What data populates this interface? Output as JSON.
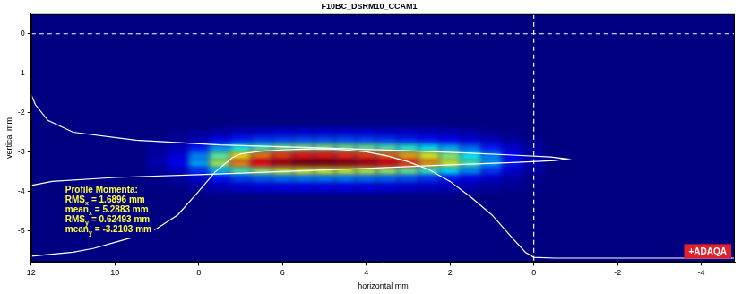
{
  "chart_data": {
    "type": "heatmap",
    "title": "F10BC_DSRM10_CCAM1",
    "x_label": "horizontal mm",
    "y_label": "vertical mm",
    "xlim": [
      12,
      -4.8
    ],
    "xticks": [
      12,
      10,
      8,
      6,
      4,
      2,
      0,
      -2,
      -4
    ],
    "ylim": [
      -5.8,
      0.5
    ],
    "yticks": [
      0,
      -1,
      -2,
      -3,
      -4,
      -5
    ],
    "grid": false,
    "heatmap": {
      "x": [
        9,
        8.5,
        8,
        7.5,
        7,
        6.5,
        6,
        5.5,
        5,
        4.5,
        4,
        3.5,
        3,
        2.5,
        2,
        1.5,
        1,
        0.5,
        0
      ],
      "y": [
        -2.5,
        -2.7,
        -2.9,
        -3.1,
        -3.3,
        -3.5,
        -3.7,
        -3.9
      ],
      "cells": [
        [
          0,
          1,
          2,
          4,
          6,
          7,
          8,
          8,
          8,
          8,
          8,
          7,
          7,
          6,
          5,
          4,
          2,
          1,
          0
        ],
        [
          1,
          2,
          6,
          11,
          15,
          18,
          19,
          20,
          20,
          20,
          19,
          18,
          16,
          14,
          12,
          9,
          6,
          3,
          1
        ],
        [
          3,
          6,
          15,
          28,
          38,
          44,
          48,
          50,
          50,
          49,
          48,
          45,
          41,
          36,
          30,
          23,
          15,
          8,
          3
        ],
        [
          4,
          10,
          26,
          47,
          64,
          75,
          81,
          85,
          85,
          83,
          81,
          77,
          70,
          61,
          51,
          38,
          26,
          13,
          4
        ],
        [
          5,
          12,
          30,
          55,
          75,
          88,
          95,
          100,
          100,
          98,
          95,
          90,
          82,
          72,
          60,
          45,
          30,
          15,
          5
        ],
        [
          3,
          7,
          18,
          33,
          45,
          53,
          57,
          60,
          60,
          59,
          57,
          54,
          49,
          43,
          36,
          27,
          18,
          9,
          3
        ],
        [
          1,
          3,
          8,
          14,
          19,
          22,
          24,
          25,
          25,
          25,
          24,
          23,
          21,
          18,
          15,
          11,
          8,
          4,
          1
        ],
        [
          1,
          1,
          3,
          6,
          8,
          9,
          10,
          10,
          10,
          10,
          10,
          9,
          8,
          7,
          6,
          5,
          3,
          2,
          1
        ]
      ],
      "zlim": [
        0,
        100
      ]
    },
    "series": [
      {
        "type": "line",
        "color": "#ffffff",
        "x": [
          12,
          11.5,
          11,
          10.5,
          10,
          9.5,
          9,
          8.5,
          8,
          7.6,
          7.2,
          7,
          6.5,
          6,
          5.5,
          5,
          4.5,
          4,
          3.5,
          3,
          2.5,
          2,
          1.5,
          1,
          0.5,
          0.2,
          0,
          -0.5,
          -1,
          -2,
          -3,
          -4,
          -4.8
        ],
        "y": [
          -5.65,
          -5.6,
          -5.55,
          -5.45,
          -5.3,
          -5.15,
          -4.95,
          -4.6,
          -4.0,
          -3.5,
          -3.15,
          -3.05,
          -2.98,
          -2.95,
          -2.93,
          -2.92,
          -2.95,
          -3.0,
          -3.1,
          -3.25,
          -3.45,
          -3.75,
          -4.15,
          -4.6,
          -5.2,
          -5.55,
          -5.68,
          -5.7,
          -5.7,
          -5.7,
          -5.7,
          -5.7,
          -5.7
        ]
      },
      {
        "type": "line",
        "color": "#ffffff",
        "x": [
          12,
          11.9,
          11.6,
          11.0,
          9.5,
          7.5,
          5,
          3,
          1.5,
          0.5,
          -0.4,
          -0.8,
          -0.5,
          0.5,
          2,
          4,
          6,
          8,
          10,
          11.5,
          12
        ],
        "y": [
          -1.55,
          -1.8,
          -2.2,
          -2.5,
          -2.7,
          -2.82,
          -2.9,
          -2.97,
          -3.03,
          -3.08,
          -3.13,
          -3.18,
          -3.22,
          -3.27,
          -3.33,
          -3.42,
          -3.5,
          -3.58,
          -3.65,
          -3.75,
          -3.85
        ]
      }
    ],
    "reference_lines": {
      "x": 0,
      "y": 0
    },
    "annotation": {
      "title": "Profile Momenta:",
      "lines": [
        {
          "text": "RMS",
          "subscript": "x",
          "after": "= 1.6896 mm"
        },
        {
          "text": "mean",
          "subscript": "x",
          "after": "= 5.2883 mm"
        },
        {
          "text": "RMS",
          "subscript": "y",
          "after": "= 0.62493 mm"
        },
        {
          "text": "mean",
          "subscript": "y",
          "after": "= -3.2103 mm"
        }
      ]
    },
    "badge": "+ADAQA"
  }
}
